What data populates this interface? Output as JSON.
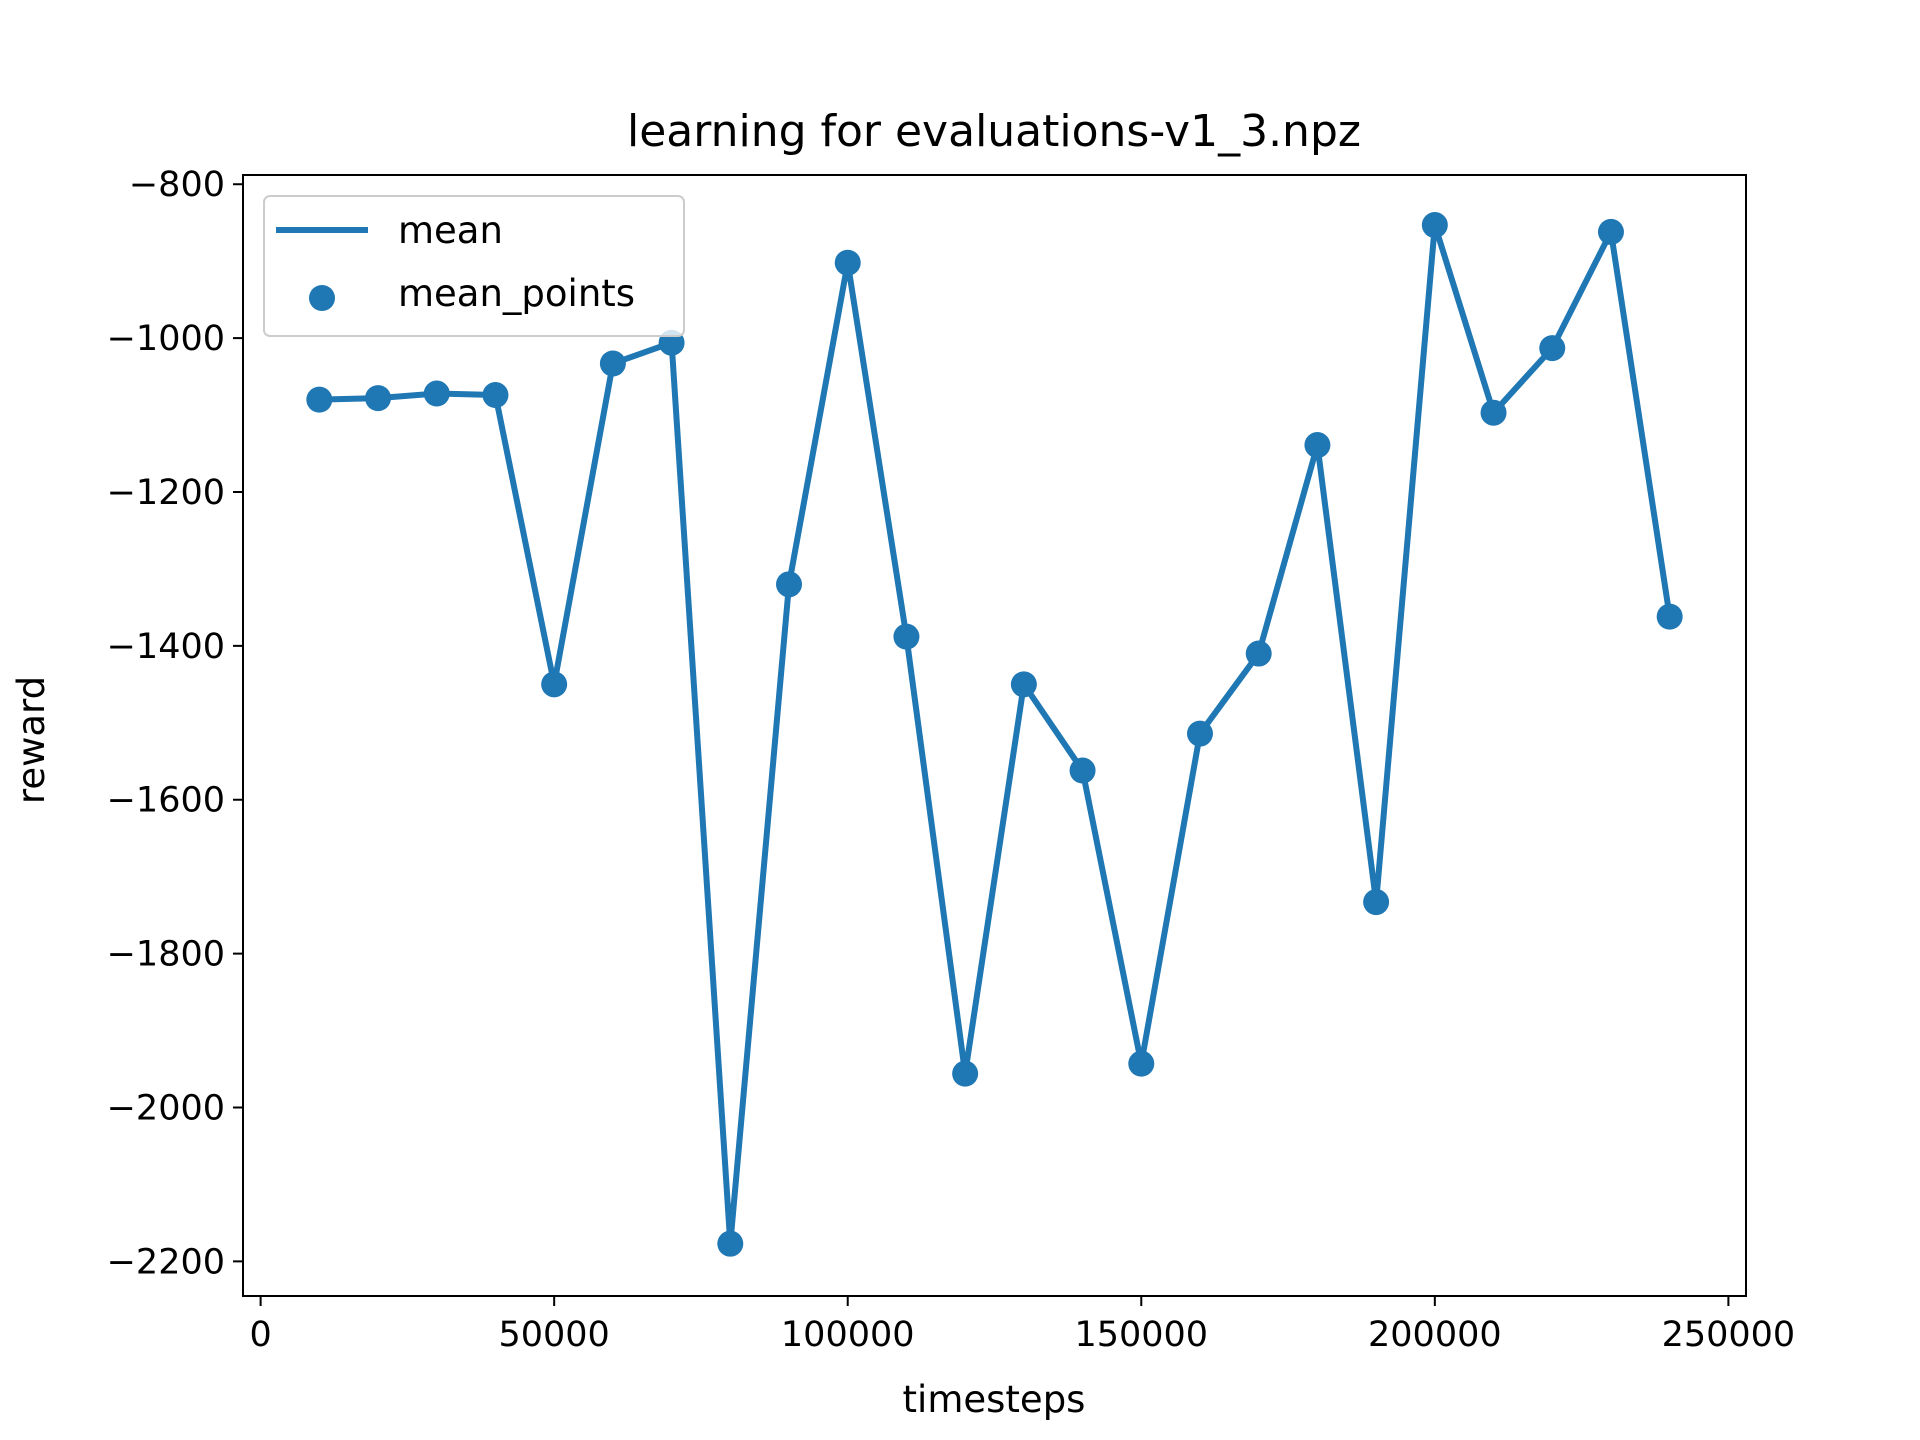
{
  "chart_data": {
    "type": "line",
    "title": "learning for evaluations-v1_3.npz",
    "xlabel": "timesteps",
    "ylabel": "reward",
    "xlim": [
      -3000,
      253000
    ],
    "ylim": [
      -2245,
      -788
    ],
    "xticks": [
      0,
      50000,
      100000,
      150000,
      200000,
      250000
    ],
    "xtick_labels": [
      "0",
      "50000",
      "100000",
      "150000",
      "200000",
      "250000"
    ],
    "yticks": [
      -2200,
      -2000,
      -1800,
      -1600,
      -1400,
      -1200,
      -1000,
      -800
    ],
    "ytick_labels": [
      "−2200",
      "−2000",
      "−1800",
      "−1600",
      "−1400",
      "−1200",
      "−1000",
      "−800"
    ],
    "grid": false,
    "legend_position": "top-left",
    "color": "#1f77b4",
    "x": [
      10000,
      20000,
      30000,
      40000,
      50000,
      60000,
      70000,
      80000,
      90000,
      100000,
      110000,
      120000,
      130000,
      140000,
      150000,
      160000,
      170000,
      180000,
      190000,
      200000,
      210000,
      220000,
      230000,
      240000
    ],
    "series": [
      {
        "name": "mean",
        "kind": "line",
        "values": [
          -1080,
          -1078,
          -1072,
          -1074,
          -1450,
          -1033,
          -1006,
          -2177,
          -1320,
          -902,
          -1388,
          -1956,
          -1450,
          -1562,
          -1943,
          -1514,
          -1410,
          -1139,
          -1733,
          -853,
          -1097,
          -1013,
          -862,
          -1362
        ]
      },
      {
        "name": "mean_points",
        "kind": "scatter",
        "values": [
          -1080,
          -1078,
          -1072,
          -1074,
          -1450,
          -1033,
          -1006,
          -2177,
          -1320,
          -902,
          -1388,
          -1956,
          -1450,
          -1562,
          -1943,
          -1514,
          -1410,
          -1139,
          -1733,
          -853,
          -1097,
          -1013,
          -862,
          -1362
        ]
      }
    ]
  }
}
